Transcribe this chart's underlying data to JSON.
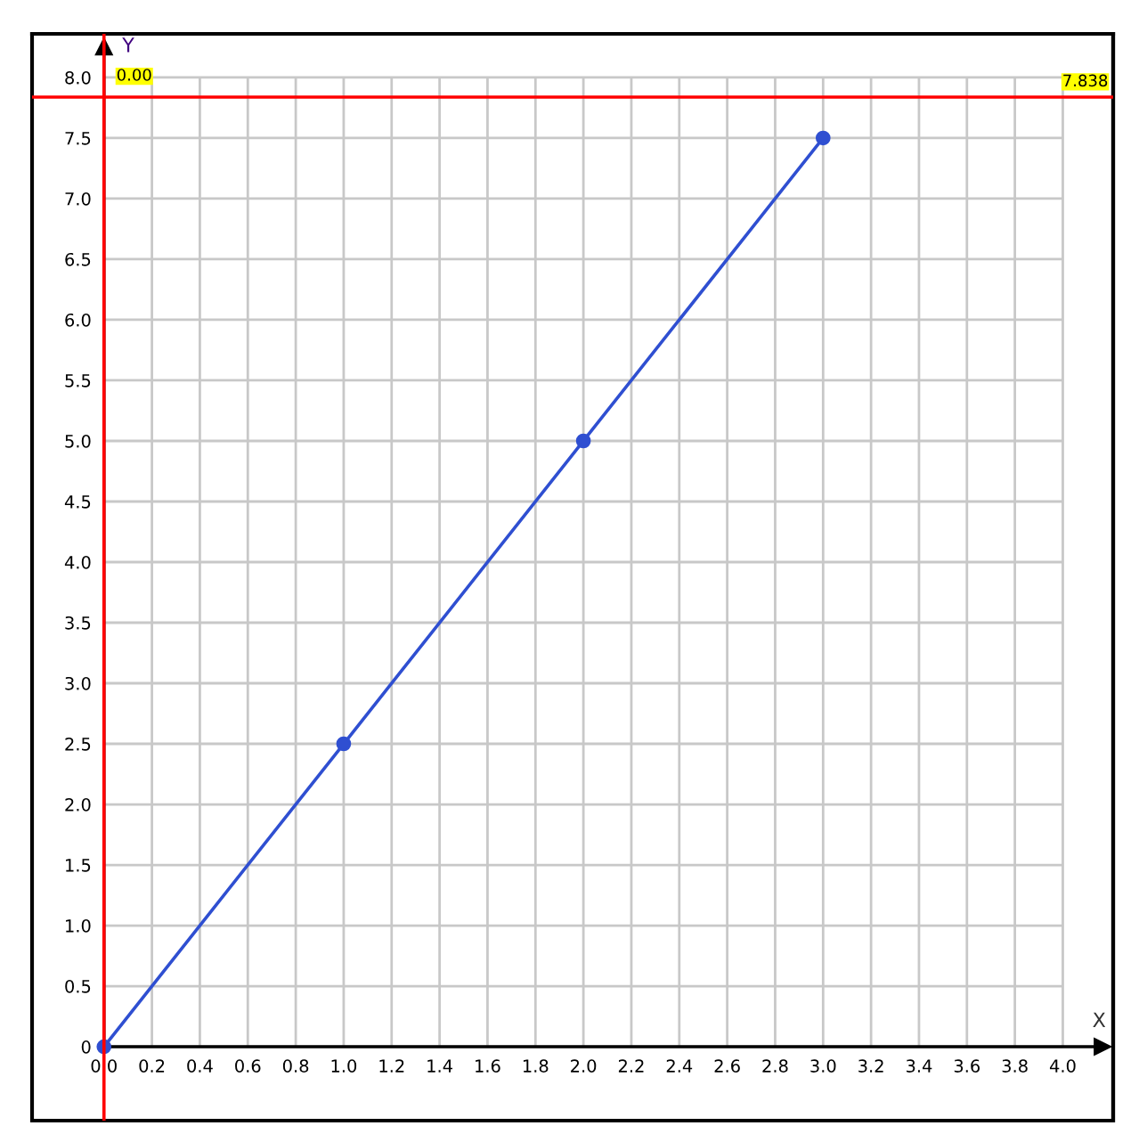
{
  "chart_data": {
    "type": "line",
    "xlabel": "X",
    "ylabel": "Y",
    "x": [
      0,
      1,
      2,
      3
    ],
    "values": [
      0,
      2.5,
      5,
      7.5
    ],
    "color": "#2f4fd1",
    "marker": "circle",
    "line_style": "solid",
    "xlim": [
      -0.3,
      4.21
    ],
    "ylim": [
      -0.61,
      8.36
    ],
    "xticks": [
      {
        "value": 0,
        "label": "0.0"
      },
      0.2,
      0.4,
      0.6,
      0.8,
      {
        "value": 1,
        "label": "1.0"
      },
      1.2,
      1.4,
      1.6,
      1.8,
      {
        "value": 2,
        "label": "2.0"
      },
      2.2,
      2.4,
      2.6,
      2.8,
      {
        "value": 3,
        "label": "3.0"
      },
      3.2,
      3.4,
      3.6,
      3.8,
      {
        "value": 4,
        "label": "4.0"
      }
    ],
    "yticks": [
      0,
      0.5,
      {
        "value": 1,
        "label": "1.0"
      },
      1.5,
      {
        "value": 2,
        "label": "2.0"
      },
      2.5,
      {
        "value": 3,
        "label": "3.0"
      },
      3.5,
      {
        "value": 4,
        "label": "4.0"
      },
      4.5,
      {
        "value": 5,
        "label": "5.0"
      },
      5.5,
      {
        "value": 6,
        "label": "6.0"
      },
      6.5,
      {
        "value": 7,
        "label": "7.0"
      },
      7.5,
      {
        "value": 8,
        "label": "8.0"
      }
    ],
    "grid": true,
    "ref_lines": [
      {
        "axis": "x",
        "value": 0,
        "label": "0.00",
        "color": "#ff0000"
      },
      {
        "axis": "y",
        "value": 7.838,
        "label": "7.838",
        "color": "#ff0000"
      }
    ]
  }
}
